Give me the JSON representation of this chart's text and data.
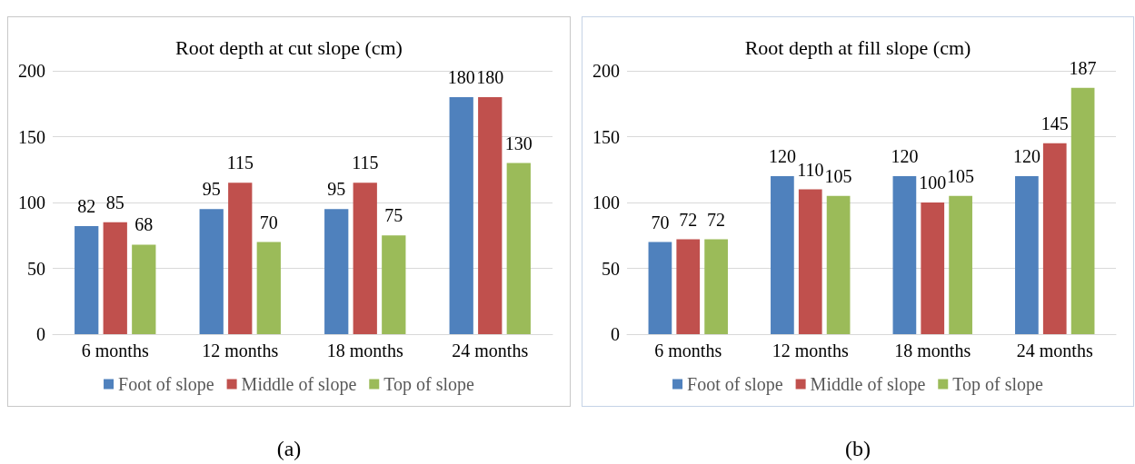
{
  "chart_data": [
    {
      "type": "bar",
      "title": "Root depth at cut slope (cm)",
      "categories": [
        "6 months",
        "12 months",
        "18 months",
        "24 months"
      ],
      "series": [
        {
          "name": "Foot of slope",
          "color": "#4f81bd",
          "values": [
            82,
            95,
            95,
            180
          ]
        },
        {
          "name": "Middle of slope",
          "color": "#c0504d",
          "values": [
            85,
            115,
            115,
            180
          ]
        },
        {
          "name": "Top of slope",
          "color": "#9bbb59",
          "values": [
            68,
            70,
            75,
            130
          ]
        }
      ],
      "ylim": [
        0,
        200
      ],
      "yticks": [
        0,
        50,
        100,
        150,
        200
      ],
      "grid": "y",
      "legend": "bottom",
      "data_labels": true,
      "annotations": [
        "(a)"
      ]
    },
    {
      "type": "bar",
      "title": "Root depth at fill slope (cm)",
      "categories": [
        "6 months",
        "12 months",
        "18 months",
        "24 months"
      ],
      "series": [
        {
          "name": "Foot of slope",
          "color": "#4f81bd",
          "values": [
            70,
            120,
            120,
            120
          ]
        },
        {
          "name": "Middle of slope",
          "color": "#c0504d",
          "values": [
            72,
            110,
            100,
            145
          ]
        },
        {
          "name": "Top of slope",
          "color": "#9bbb59",
          "values": [
            72,
            105,
            105,
            187
          ]
        }
      ],
      "ylim": [
        0,
        200
      ],
      "yticks": [
        0,
        50,
        100,
        150,
        200
      ],
      "grid": "y",
      "legend": "bottom",
      "data_labels": true,
      "annotations": [
        "(b)"
      ]
    }
  ]
}
